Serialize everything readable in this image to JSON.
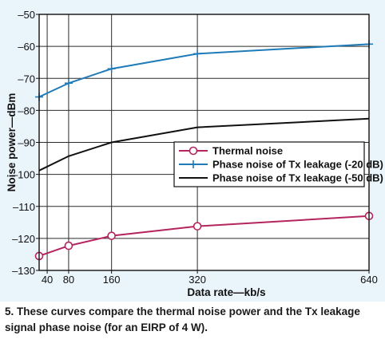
{
  "chart_data": {
    "type": "line",
    "xlabel": "Data rate—kb/s",
    "ylabel": "Noise power—dBm",
    "xlim": [
      25,
      640
    ],
    "ylim": [
      -130,
      -50
    ],
    "x_ticks": [
      40,
      80,
      160,
      320,
      640
    ],
    "x_tick_labels": [
      "40",
      "80",
      "160",
      "320",
      "640"
    ],
    "y_ticks": [
      -50,
      -60,
      -70,
      -80,
      -90,
      -100,
      -110,
      -120,
      -130
    ],
    "y_tick_labels": [
      "–50",
      "–60",
      "–70",
      "–80",
      "–90",
      "–100",
      "–110",
      "–120",
      "–130"
    ],
    "grid": true,
    "legend_position": "center-right",
    "series": [
      {
        "name": "Thermal noise",
        "color": "#b5245f",
        "marker": "circle",
        "x": [
          25,
          80,
          160,
          320,
          640
        ],
        "y": [
          -125.5,
          -122.3,
          -119.2,
          -116.2,
          -113.0
        ]
      },
      {
        "name": "Phase noise of Tx leakage (-20 dB)",
        "color": "#1f7ab8",
        "marker": "plus",
        "x": [
          25,
          80,
          160,
          320,
          640
        ],
        "y": [
          -75.8,
          -71.5,
          -67.0,
          -62.3,
          -59.3
        ]
      },
      {
        "name": "Phase noise of Tx leakage (-50 dB)",
        "color": "#111111",
        "marker": "none",
        "x": [
          25,
          80,
          160,
          320,
          640
        ],
        "y": [
          -98.8,
          -94.3,
          -90.0,
          -85.3,
          -82.6
        ]
      }
    ]
  },
  "caption": "5. These curves compare the thermal noise power and the Tx leakage signal phase noise (for an EIRP of 4 W)."
}
